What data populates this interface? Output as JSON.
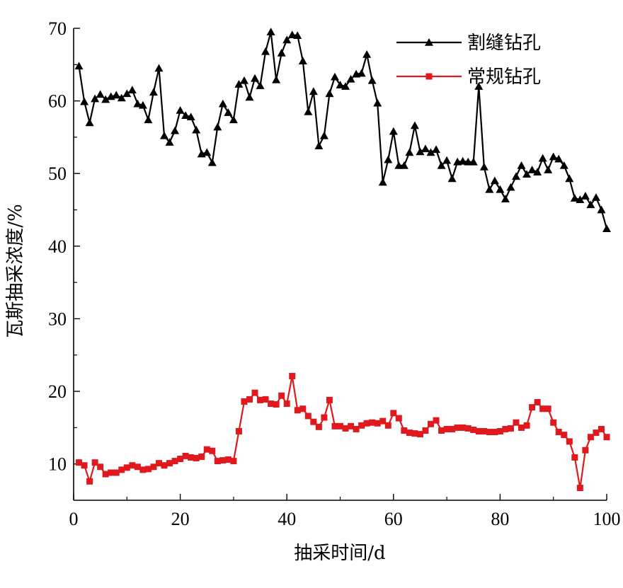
{
  "chart_data": {
    "type": "line",
    "xlabel": "抽采时间/d",
    "ylabel": "瓦斯抽采浓度/%",
    "xlim": [
      0,
      100
    ],
    "ylim": [
      5,
      70
    ],
    "xticks": [
      0,
      20,
      40,
      60,
      80,
      100
    ],
    "yticks": [
      10,
      20,
      30,
      40,
      50,
      60,
      70
    ],
    "grid": false,
    "legend_position": "top-right",
    "series": [
      {
        "name": "割缝钻孔",
        "color": "#000000",
        "marker": "triangle",
        "x": [
          1,
          2,
          3,
          4,
          5,
          6,
          7,
          8,
          9,
          10,
          11,
          12,
          13,
          14,
          15,
          16,
          17,
          18,
          19,
          20,
          21,
          22,
          23,
          24,
          25,
          26,
          27,
          28,
          29,
          30,
          31,
          32,
          33,
          34,
          35,
          36,
          37,
          38,
          39,
          40,
          41,
          42,
          43,
          44,
          45,
          46,
          47,
          48,
          49,
          50,
          51,
          52,
          53,
          54,
          55,
          56,
          57,
          58,
          59,
          60,
          61,
          62,
          63,
          64,
          65,
          66,
          67,
          68,
          69,
          70,
          71,
          72,
          73,
          74,
          75,
          76,
          77,
          78,
          79,
          80,
          81,
          82,
          83,
          84,
          85,
          86,
          87,
          88,
          89,
          90,
          91,
          92,
          93,
          94,
          95,
          96,
          97,
          98,
          99,
          100
        ],
        "y": [
          64.8,
          59.9,
          57.0,
          60.3,
          60.9,
          60.2,
          60.6,
          60.8,
          60.4,
          61.0,
          61.5,
          59.6,
          59.4,
          57.4,
          61.2,
          64.5,
          55.2,
          54.3,
          55.9,
          58.7,
          58.0,
          57.8,
          56.0,
          52.7,
          52.9,
          51.5,
          56.4,
          59.6,
          58.4,
          57.4,
          62.3,
          62.8,
          60.5,
          63.1,
          62.1,
          66.8,
          69.5,
          62.9,
          66.6,
          68.4,
          69.1,
          69.0,
          65.5,
          58.5,
          61.3,
          53.8,
          55.2,
          61.0,
          63.3,
          62.2,
          62.0,
          63.0,
          63.7,
          63.8,
          66.4,
          62.8,
          59.7,
          48.8,
          51.9,
          55.8,
          51.1,
          51.1,
          52.9,
          56.6,
          53.0,
          53.4,
          52.9,
          53.3,
          51.1,
          51.8,
          49.3,
          51.6,
          51.7,
          51.6,
          51.6,
          62.0,
          50.9,
          47.8,
          49.0,
          47.8,
          46.5,
          48.1,
          49.6,
          51.1,
          49.9,
          50.5,
          50.2,
          52.1,
          50.5,
          52.3,
          52.0,
          51.1,
          49.3,
          46.6,
          46.4,
          46.9,
          45.7,
          46.7,
          45.0,
          42.4
        ]
      },
      {
        "name": "常规钻孔",
        "color": "#e0191e",
        "marker": "square",
        "x": [
          1,
          2,
          3,
          4,
          5,
          6,
          7,
          8,
          9,
          10,
          11,
          12,
          13,
          14,
          15,
          16,
          17,
          18,
          19,
          20,
          21,
          22,
          23,
          24,
          25,
          26,
          27,
          28,
          29,
          30,
          31,
          32,
          33,
          34,
          35,
          36,
          37,
          38,
          39,
          40,
          41,
          42,
          43,
          44,
          45,
          46,
          47,
          48,
          49,
          50,
          51,
          52,
          53,
          54,
          55,
          56,
          57,
          58,
          59,
          60,
          61,
          62,
          63,
          64,
          65,
          66,
          67,
          68,
          69,
          70,
          71,
          72,
          73,
          74,
          75,
          76,
          77,
          78,
          79,
          80,
          81,
          82,
          83,
          84,
          85,
          86,
          87,
          88,
          89,
          90,
          91,
          92,
          93,
          94,
          95,
          96,
          97,
          98,
          99,
          100
        ],
        "y": [
          10.2,
          9.8,
          7.6,
          10.2,
          9.6,
          8.6,
          8.8,
          8.8,
          9.2,
          9.5,
          9.8,
          9.6,
          9.2,
          9.3,
          9.6,
          10.1,
          9.8,
          10.1,
          10.4,
          10.7,
          11.1,
          10.9,
          10.8,
          11.0,
          12.0,
          11.8,
          10.4,
          10.5,
          10.6,
          10.4,
          14.5,
          18.6,
          18.9,
          19.8,
          18.8,
          18.9,
          18.3,
          18.2,
          19.4,
          18.3,
          22.1,
          17.4,
          17.6,
          16.6,
          15.8,
          15.1,
          16.4,
          18.8,
          15.2,
          15.2,
          14.9,
          15.2,
          14.8,
          15.3,
          15.6,
          15.7,
          15.6,
          15.9,
          15.3,
          17.0,
          16.3,
          14.6,
          14.3,
          14.2,
          14.1,
          14.6,
          15.5,
          16.0,
          14.6,
          14.8,
          14.8,
          15.0,
          15.0,
          14.9,
          14.7,
          14.5,
          14.5,
          14.4,
          14.4,
          14.5,
          14.8,
          14.9,
          15.7,
          15.0,
          15.3,
          17.8,
          18.5,
          17.6,
          17.6,
          15.7,
          14.4,
          14.0,
          13.1,
          10.9,
          6.7,
          11.9,
          13.7,
          14.3,
          14.8,
          13.7
        ]
      }
    ]
  }
}
